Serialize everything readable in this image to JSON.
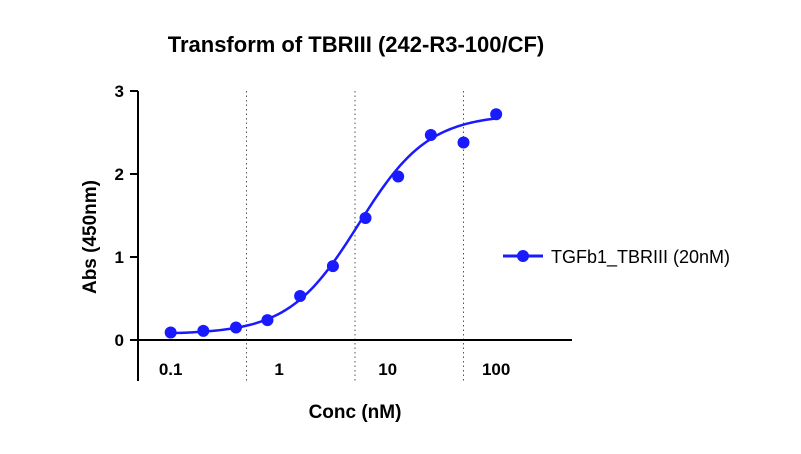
{
  "chart_data": {
    "type": "scatter",
    "title": "Transform of TBRIII (242-R3-100/CF)",
    "xlabel": "Conc (nM)",
    "ylabel": "Abs (450nm)",
    "x_scale": "log10",
    "xlim": [
      0.05,
      500
    ],
    "ylim": [
      0,
      3
    ],
    "x_ticks": [
      {
        "value": 0.1,
        "label": "0.1"
      },
      {
        "value": 1,
        "label": "1"
      },
      {
        "value": 10,
        "label": "10"
      },
      {
        "value": 100,
        "label": "100"
      }
    ],
    "y_ticks": [
      {
        "value": 0,
        "label": "0"
      },
      {
        "value": 1,
        "label": "1"
      },
      {
        "value": 2,
        "label": "2"
      },
      {
        "value": 3,
        "label": "3"
      }
    ],
    "vertical_gridlines": "dotted",
    "vertical_gridline_values": [
      0.05,
      0.5,
      5,
      50
    ],
    "legend_position": "right",
    "series": [
      {
        "name": "TGFb1_TBRIII (20nM)",
        "color": "#1a1aff",
        "marker": "circle",
        "x": [
          0.1,
          0.2,
          0.4,
          0.78,
          1.56,
          3.13,
          6.25,
          12.5,
          25,
          50,
          100
        ],
        "y": [
          0.09,
          0.11,
          0.15,
          0.24,
          0.53,
          0.89,
          1.47,
          1.97,
          2.47,
          2.38,
          2.72
        ],
        "fit_curve": {
          "model": "4PL",
          "bottom": 0.07,
          "top": 2.72,
          "ec50": 5.4,
          "hill": 1.35,
          "x_range": [
            0.1,
            100
          ]
        }
      }
    ]
  }
}
